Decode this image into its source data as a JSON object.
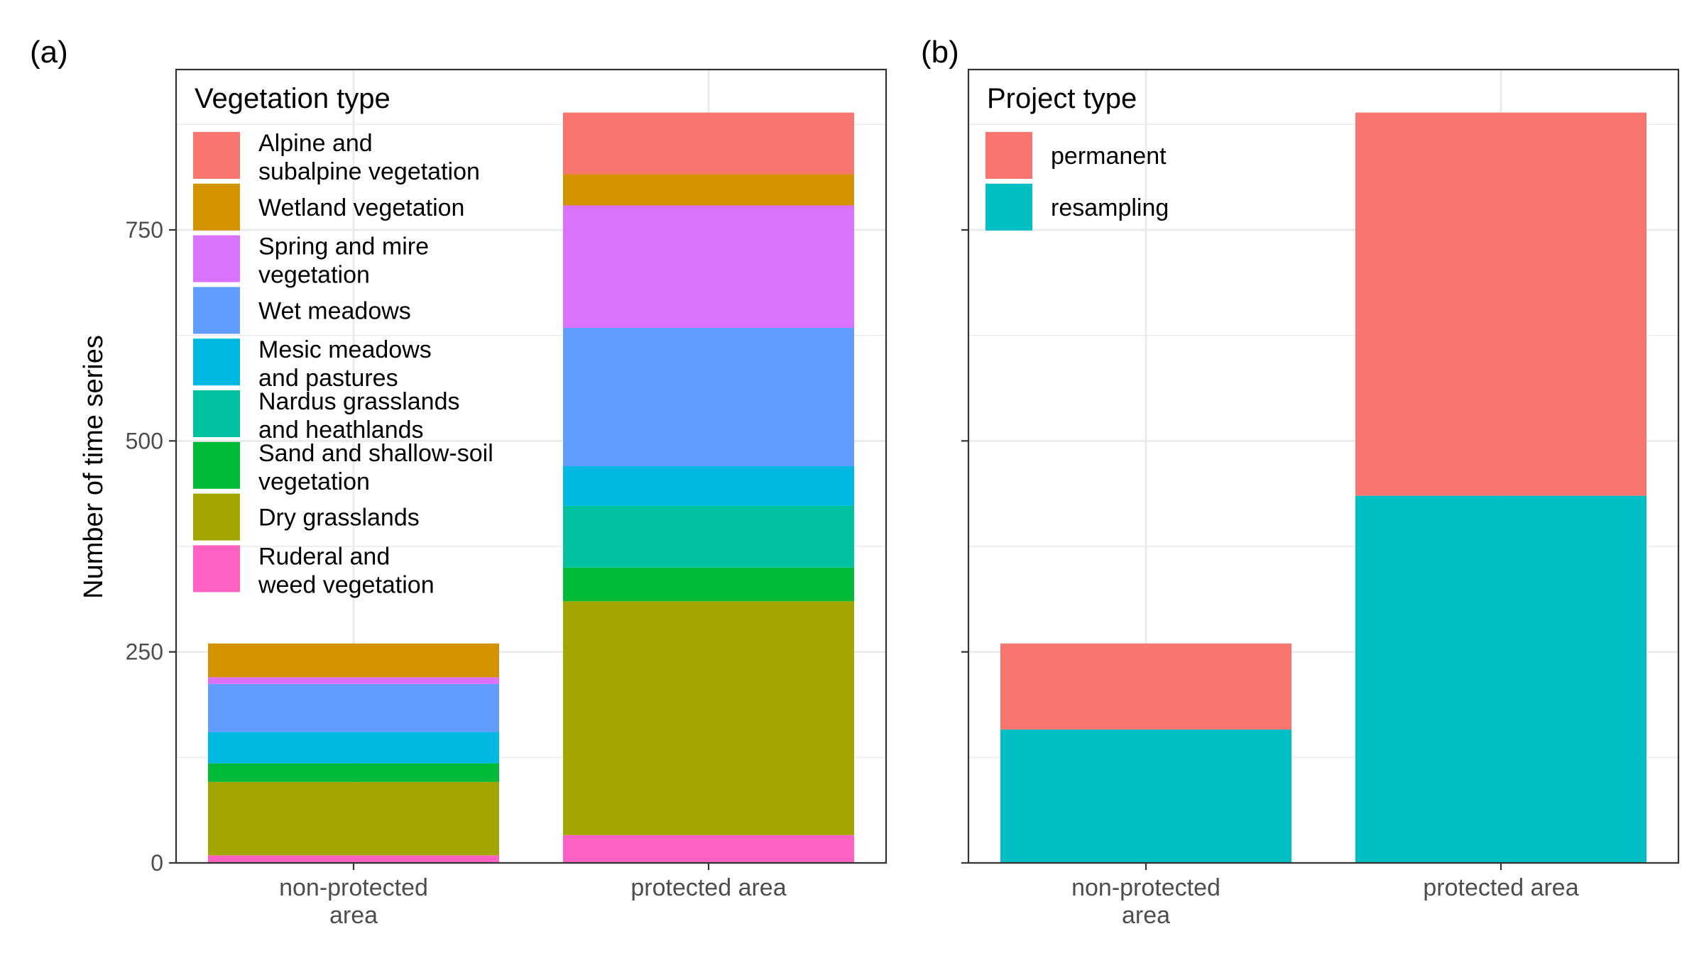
{
  "figure": {
    "panel_a_label": "(a)",
    "panel_b_label": "(b)",
    "ylabel": "Number of time series"
  },
  "chart_data": [
    {
      "type": "bar",
      "stacked": true,
      "panel": "(a)",
      "title": "",
      "xlabel": "",
      "ylabel": "Number of time series",
      "categories": [
        "non-protected\narea",
        "protected area"
      ],
      "ylim": [
        0,
        940
      ],
      "yticks": [
        0,
        250,
        500,
        750
      ],
      "grid": true,
      "legend": {
        "title": "Vegetation type",
        "position": "top-left-inside"
      },
      "series": [
        {
          "name": "Alpine and\nsubalpine vegetation",
          "color": "#F8766D",
          "values": [
            0,
            73
          ]
        },
        {
          "name": "Wetland vegetation",
          "color": "#D39200",
          "values": [
            40,
            37
          ]
        },
        {
          "name": "Spring and mire\nvegetation",
          "color": "#DB72FB",
          "values": [
            8,
            145
          ]
        },
        {
          "name": "Wet meadows",
          "color": "#619CFF",
          "values": [
            57,
            164
          ]
        },
        {
          "name": "Mesic meadows\nand pastures",
          "color": "#00B9E3",
          "values": [
            37,
            47
          ]
        },
        {
          "name": "Nardus grasslands\nand heathlands",
          "color": "#00C19F",
          "values": [
            0,
            73
          ]
        },
        {
          "name": "Sand and shallow-soil\nvegetation",
          "color": "#00BA38",
          "values": [
            22,
            40
          ]
        },
        {
          "name": "Dry grasslands",
          "color": "#A3A500",
          "values": [
            87,
            277
          ]
        },
        {
          "name": "Ruderal and\nweed vegetation",
          "color": "#FF61C3",
          "values": [
            9,
            33
          ]
        }
      ]
    },
    {
      "type": "bar",
      "stacked": true,
      "panel": "(b)",
      "title": "",
      "xlabel": "",
      "ylabel": "",
      "categories": [
        "non-protected\narea",
        "protected area"
      ],
      "ylim": [
        0,
        940
      ],
      "yticks": [
        0,
        250,
        500,
        750
      ],
      "grid": true,
      "legend": {
        "title": "Project type",
        "position": "top-left-inside"
      },
      "series": [
        {
          "name": "permanent",
          "color": "#F8766D",
          "values": [
            102,
            454
          ]
        },
        {
          "name": "resampling",
          "color": "#00BFC4",
          "values": [
            158,
            435
          ]
        }
      ]
    }
  ]
}
